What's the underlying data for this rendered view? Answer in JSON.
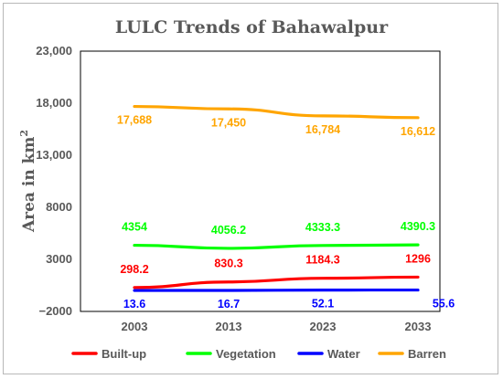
{
  "chart_data": {
    "type": "line",
    "title": "LULC Trends of Bahawalpur",
    "ylabel": "Area in km",
    "ylabel_superscript": "2",
    "xlabel": "",
    "categories": [
      "2003",
      "2013",
      "2023",
      "2033"
    ],
    "ylim": [
      -2000,
      23000
    ],
    "yticks": [
      "23,000",
      "18,000",
      "13,000",
      "8000",
      "3000",
      "−2000"
    ],
    "ytick_values": [
      23000,
      18000,
      13000,
      8000,
      3000,
      -2000
    ],
    "grid": false,
    "legend_position": "bottom",
    "series": [
      {
        "name": "Built-up",
        "color": "#ff0000",
        "values": [
          298.2,
          830.3,
          1184.3,
          1296
        ],
        "labels": [
          "298.2",
          "830.3",
          "1184.3",
          "1296"
        ],
        "label_pos": "above"
      },
      {
        "name": "Vegetation",
        "color": "#00ff00",
        "values": [
          4354,
          4056.2,
          4333.3,
          4390.3
        ],
        "labels": [
          "4354",
          "4056.2",
          "4333.3",
          "4390.3"
        ],
        "label_pos": "above"
      },
      {
        "name": "Water",
        "color": "#0000ff",
        "values": [
          13.6,
          16.7,
          52.1,
          55.6
        ],
        "labels": [
          "13.6",
          "16.7",
          "52.1",
          "55.6"
        ],
        "label_pos": "below"
      },
      {
        "name": "Barren",
        "color": "#ffa500",
        "values": [
          17688,
          17450,
          16784,
          16612
        ],
        "labels": [
          "17,688",
          "17,450",
          "16,784",
          "16,612"
        ],
        "label_pos": "below"
      }
    ]
  }
}
